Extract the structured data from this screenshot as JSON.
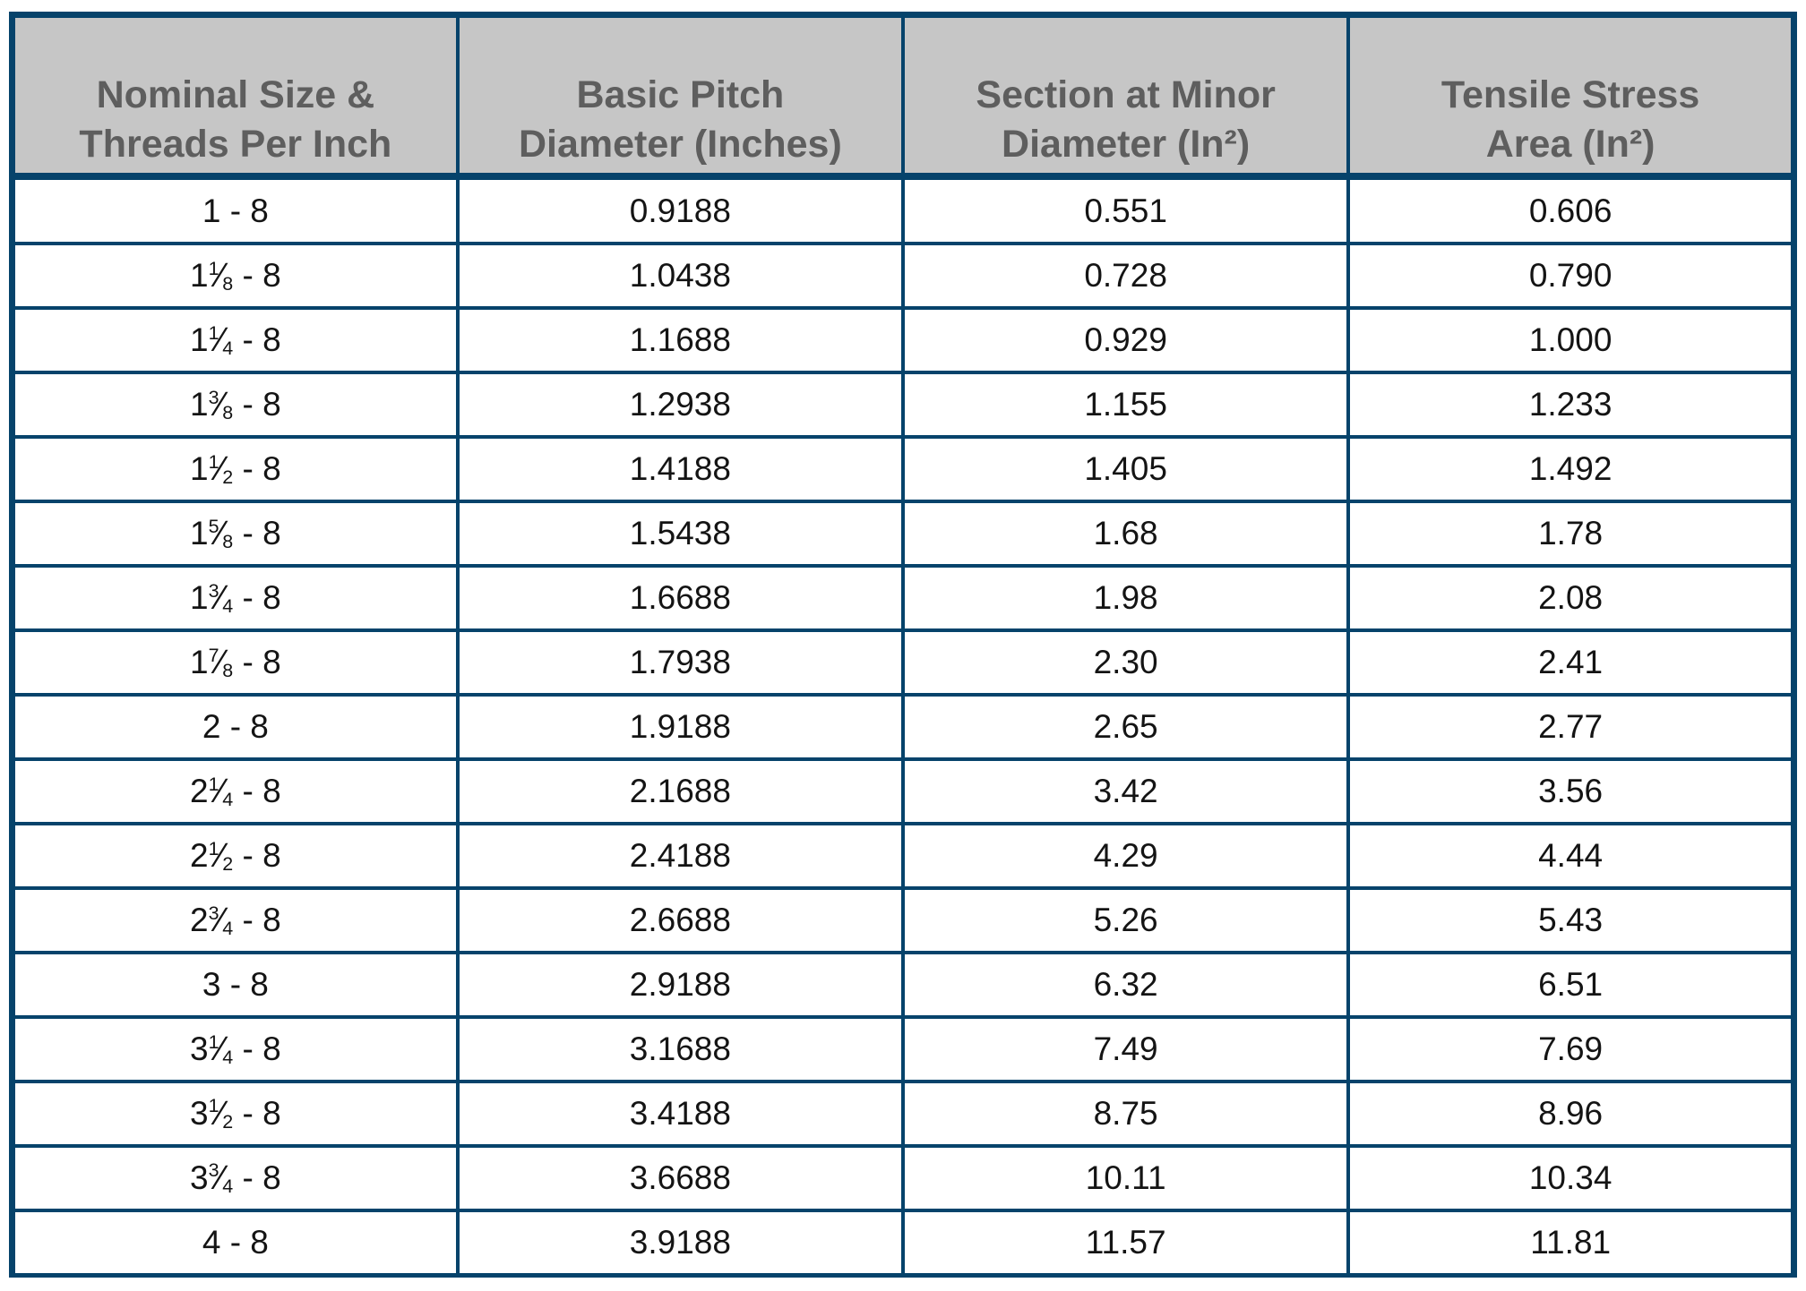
{
  "colors": {
    "border_navy": "#06436b",
    "header_background": "#c6c6c6",
    "header_text": "#5e5e5e",
    "cell_text": "#141414",
    "page_background": "#ffffff"
  },
  "chart_data": {
    "type": "table",
    "columns": [
      "Nominal Size &\nThreads Per Inch",
      "Basic Pitch\nDiameter (Inches)",
      "Section at Minor\nDiameter (In²)",
      "Tensile Stress\nArea (In²)"
    ],
    "rows": [
      {
        "size": "1 - 8",
        "size_parts": {
          "whole": "1",
          "num": "",
          "den": "",
          "tpi": "8"
        },
        "values": [
          "0.9188",
          "0.551",
          "0.606"
        ]
      },
      {
        "size": "1⅛ - 8",
        "size_parts": {
          "whole": "1",
          "num": "1",
          "den": "8",
          "tpi": "8"
        },
        "values": [
          "1.0438",
          "0.728",
          "0.790"
        ]
      },
      {
        "size": "1¼ - 8",
        "size_parts": {
          "whole": "1",
          "num": "1",
          "den": "4",
          "tpi": "8"
        },
        "values": [
          "1.1688",
          "0.929",
          "1.000"
        ]
      },
      {
        "size": "1⅜ - 8",
        "size_parts": {
          "whole": "1",
          "num": "3",
          "den": "8",
          "tpi": "8"
        },
        "values": [
          "1.2938",
          "1.155",
          "1.233"
        ]
      },
      {
        "size": "1½ - 8",
        "size_parts": {
          "whole": "1",
          "num": "1",
          "den": "2",
          "tpi": "8"
        },
        "values": [
          "1.4188",
          "1.405",
          "1.492"
        ]
      },
      {
        "size": "1⅝ - 8",
        "size_parts": {
          "whole": "1",
          "num": "5",
          "den": "8",
          "tpi": "8"
        },
        "values": [
          "1.5438",
          "1.68",
          "1.78"
        ]
      },
      {
        "size": "1¾ - 8",
        "size_parts": {
          "whole": "1",
          "num": "3",
          "den": "4",
          "tpi": "8"
        },
        "values": [
          "1.6688",
          "1.98",
          "2.08"
        ]
      },
      {
        "size": "1⅞ - 8",
        "size_parts": {
          "whole": "1",
          "num": "7",
          "den": "8",
          "tpi": "8"
        },
        "values": [
          "1.7938",
          "2.30",
          "2.41"
        ]
      },
      {
        "size": "2 - 8",
        "size_parts": {
          "whole": "2",
          "num": "",
          "den": "",
          "tpi": "8"
        },
        "values": [
          "1.9188",
          "2.65",
          "2.77"
        ]
      },
      {
        "size": "2¼ - 8",
        "size_parts": {
          "whole": "2",
          "num": "1",
          "den": "4",
          "tpi": "8"
        },
        "values": [
          "2.1688",
          "3.42",
          "3.56"
        ]
      },
      {
        "size": "2½ - 8",
        "size_parts": {
          "whole": "2",
          "num": "1",
          "den": "2",
          "tpi": "8"
        },
        "values": [
          "2.4188",
          "4.29",
          "4.44"
        ]
      },
      {
        "size": "2¾ - 8",
        "size_parts": {
          "whole": "2",
          "num": "3",
          "den": "4",
          "tpi": "8"
        },
        "values": [
          "2.6688",
          "5.26",
          "5.43"
        ]
      },
      {
        "size": "3 - 8",
        "size_parts": {
          "whole": "3",
          "num": "",
          "den": "",
          "tpi": "8"
        },
        "values": [
          "2.9188",
          "6.32",
          "6.51"
        ]
      },
      {
        "size": "3¼ - 8",
        "size_parts": {
          "whole": "3",
          "num": "1",
          "den": "4",
          "tpi": "8"
        },
        "values": [
          "3.1688",
          "7.49",
          "7.69"
        ]
      },
      {
        "size": "3½ - 8",
        "size_parts": {
          "whole": "3",
          "num": "1",
          "den": "2",
          "tpi": "8"
        },
        "values": [
          "3.4188",
          "8.75",
          "8.96"
        ]
      },
      {
        "size": "3¾ - 8",
        "size_parts": {
          "whole": "3",
          "num": "3",
          "den": "4",
          "tpi": "8"
        },
        "values": [
          "3.6688",
          "10.11",
          "10.34"
        ]
      },
      {
        "size": "4 - 8",
        "size_parts": {
          "whole": "4",
          "num": "",
          "den": "",
          "tpi": "8"
        },
        "values": [
          "3.9188",
          "11.57",
          "11.81"
        ]
      }
    ]
  }
}
